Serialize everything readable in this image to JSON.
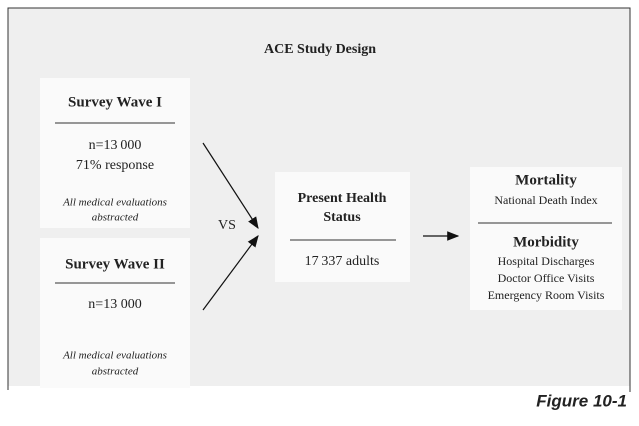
{
  "title": "ACE Study Design",
  "nodes": [
    {
      "heading": "Survey Wave I",
      "lines": [
        "n=13 000",
        "71% response"
      ],
      "note": [
        "All medical evaluations",
        "abstracted"
      ]
    },
    {
      "heading": "Survey Wave II",
      "lines": [
        "n=13 000"
      ],
      "note": [
        "All medical evaluations",
        "abstracted"
      ]
    },
    {
      "heading": [
        "Present Health",
        "Status"
      ],
      "lines": [
        "17 337 adults"
      ]
    },
    {
      "sections": [
        {
          "heading": "Mortality",
          "lines": [
            "National Death Index"
          ]
        },
        {
          "heading": "Morbidity",
          "lines": [
            "Hospital Discharges",
            "Doctor Office Visits",
            "Emergency Room Visits"
          ]
        }
      ]
    }
  ],
  "connector": "VS",
  "figure_label": "Figure 10-1"
}
